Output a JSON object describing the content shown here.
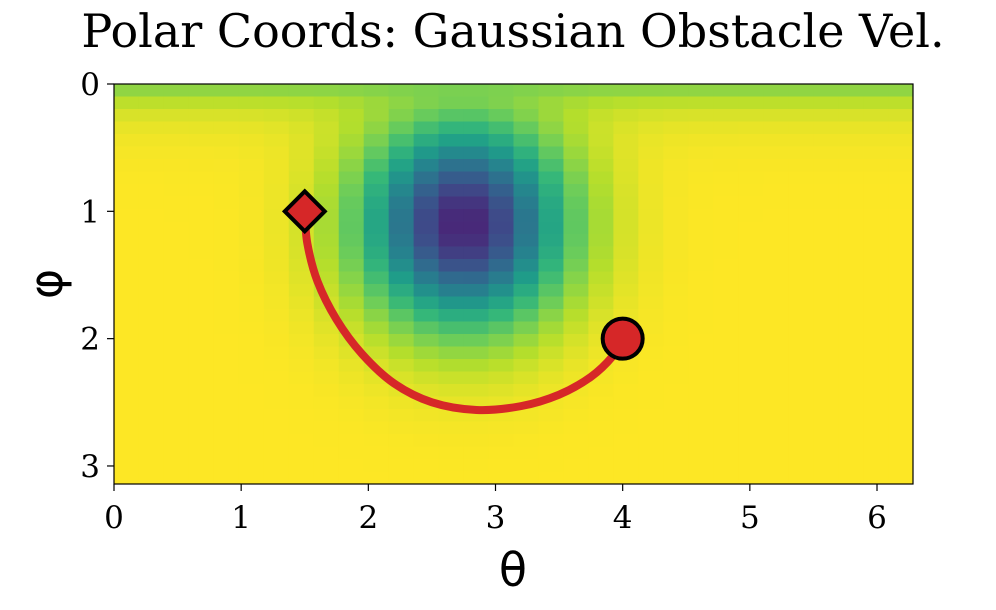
{
  "chart_data": {
    "type": "heatmap",
    "title": "Polar Coords: Gaussian Obstacle Vel.",
    "xlabel": "θ",
    "ylabel": "φ",
    "xlim": [
      0,
      6.283
    ],
    "ylim": [
      0,
      3.1416
    ],
    "y_inverted": true,
    "x_ticks": [
      "0",
      "1",
      "2",
      "3",
      "4",
      "5",
      "6"
    ],
    "y_ticks": [
      "0",
      "1",
      "2",
      "3"
    ],
    "colormap": "viridis",
    "grid": false,
    "heatmap": {
      "description_free": true,
      "center_theta": 2.75,
      "center_phi": 1.1,
      "sigma_theta": 0.55,
      "sigma_phi": 0.55,
      "min_level": 0.1,
      "top_edge_level": 0.78,
      "cells_theta": 32,
      "cells_phi": 32
    },
    "path": {
      "color": "#d62728",
      "points": [
        [
          1.5,
          1.0
        ],
        [
          1.52,
          1.25
        ],
        [
          1.6,
          1.55
        ],
        [
          1.75,
          1.85
        ],
        [
          1.95,
          2.12
        ],
        [
          2.2,
          2.35
        ],
        [
          2.5,
          2.5
        ],
        [
          2.85,
          2.56
        ],
        [
          3.2,
          2.53
        ],
        [
          3.5,
          2.44
        ],
        [
          3.75,
          2.3
        ],
        [
          3.92,
          2.14
        ],
        [
          4.0,
          2.0
        ]
      ]
    },
    "start_marker": {
      "shape": "diamond",
      "theta": 1.5,
      "phi": 1.0,
      "color": "#d62728"
    },
    "end_marker": {
      "shape": "circle",
      "theta": 4.0,
      "phi": 2.0,
      "color": "#d62728"
    }
  }
}
